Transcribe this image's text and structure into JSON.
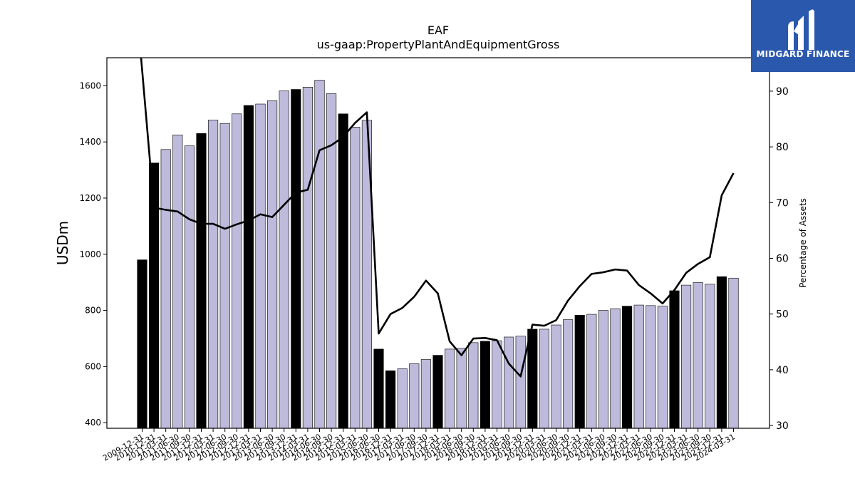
{
  "chart_data": {
    "type": "bar",
    "title": "EAF",
    "subtitle": "us-gaap:PropertyPlantAndEquipmentGross",
    "ylabel": "USDm",
    "y2label": "Percentage of Assets",
    "ylim": [
      380,
      1700
    ],
    "y2lim": [
      29.5,
      96
    ],
    "yticks": [
      400,
      600,
      800,
      1000,
      1200,
      1400,
      1600
    ],
    "y2ticks": [
      30,
      40,
      50,
      60,
      70,
      80,
      90
    ],
    "colors": {
      "bar_regular": "#bebadb",
      "bar_annual": "#000000",
      "line": "#000000"
    },
    "categories": [
      "2009-12-31",
      "2010-12-31",
      "2011-03-31",
      "2011-06-30",
      "2011-09-30",
      "2011-12-31",
      "2012-03-31",
      "2012-06-30",
      "2012-09-30",
      "2012-12-31",
      "2013-03-31",
      "2013-06-30",
      "2013-09-30",
      "2013-12-31",
      "2014-03-31",
      "2014-06-30",
      "2014-09-30",
      "2014-12-31",
      "2015-03-31",
      "2015-06-30",
      "2016-06-30",
      "2016-12-31",
      "2017-03-31",
      "2017-06-30",
      "2017-09-30",
      "2017-12-31",
      "2018-03-31",
      "2018-06-30",
      "2018-09-30",
      "2018-12-31",
      "2019-03-31",
      "2019-06-30",
      "2019-09-30",
      "2019-12-31",
      "2020-03-31",
      "2020-06-30",
      "2020-09-30",
      "2020-12-31",
      "2021-03-31",
      "2021-06-30",
      "2021-09-30",
      "2021-12-31",
      "2022-03-31",
      "2022-06-30",
      "2022-09-30",
      "2022-12-31",
      "2023-03-31",
      "2023-06-30",
      "2023-09-30",
      "2023-12-31",
      "2024-03-31"
    ],
    "series": [
      {
        "values": [
          980,
          1325,
          1373,
          1425,
          1386,
          1430,
          1478,
          1466,
          1500,
          1530,
          1535,
          1547,
          1582,
          1587,
          1595,
          1620,
          1572,
          1500,
          1453,
          1477,
          662,
          585,
          592,
          610,
          625,
          640,
          662,
          665,
          685,
          690,
          692,
          705,
          708,
          733,
          733,
          748,
          767,
          783,
          786,
          800,
          806,
          815,
          819,
          817,
          815,
          870,
          890,
          899,
          893,
          920,
          915
        ],
        "annual": [
          true,
          true,
          false,
          false,
          false,
          true,
          false,
          false,
          false,
          true,
          false,
          false,
          false,
          true,
          false,
          false,
          false,
          true,
          false,
          false,
          true,
          true,
          false,
          false,
          false,
          true,
          false,
          false,
          false,
          true,
          false,
          false,
          false,
          true,
          false,
          false,
          false,
          true,
          false,
          false,
          false,
          true,
          false,
          false,
          false,
          true,
          false,
          false,
          false,
          true,
          false
        ]
      },
      {
        "axis": "right",
        "values": [
          null,
          69.1,
          68.7,
          68.4,
          67.0,
          66.2,
          66.2,
          65.3,
          66.1,
          66.8,
          67.9,
          67.4,
          69.6,
          71.8,
          72.3,
          79.4,
          80.3,
          81.8,
          84.3,
          86.2,
          46.5,
          50.0,
          51.1,
          53.1,
          56.0,
          53.7,
          45.1,
          42.6,
          45.6,
          45.7,
          45.3,
          41.1,
          38.8,
          48.1,
          47.9,
          48.9,
          52.4,
          55.0,
          57.2,
          57.5,
          58.0,
          57.8,
          55.2,
          53.7,
          51.9,
          54.3,
          57.4,
          59.0,
          60.2,
          71.3,
          75.3
        ]
      }
    ]
  },
  "logo": {
    "text": "MIDGARD FINANCE"
  }
}
